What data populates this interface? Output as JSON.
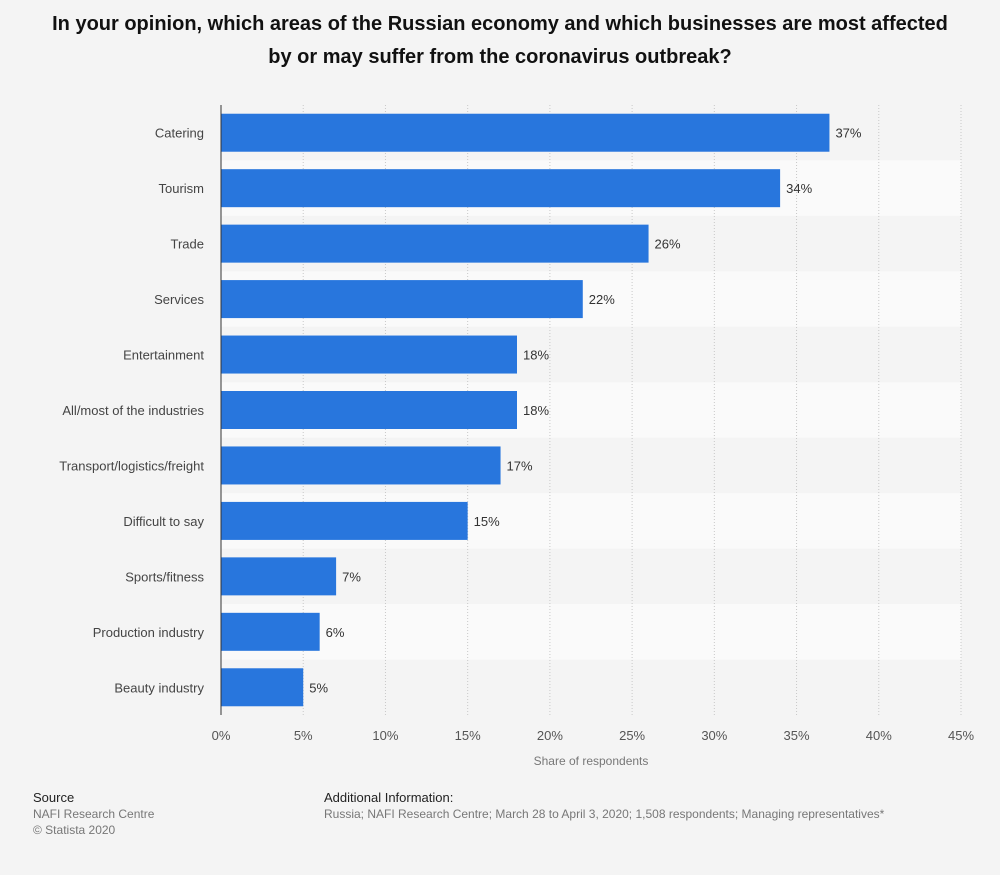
{
  "chart_data": {
    "type": "bar",
    "orientation": "horizontal",
    "title": "In your opinion, which areas of the Russian economy and which businesses are most affected by or may suffer from the coronavirus outbreak?",
    "categories": [
      "Catering",
      "Tourism",
      "Trade",
      "Services",
      "Entertainment",
      "All/most of the industries",
      "Transport/logistics/freight",
      "Difficult to say",
      "Sports/fitness",
      "Production industry",
      "Beauty industry"
    ],
    "values": [
      37,
      34,
      26,
      22,
      18,
      18,
      17,
      15,
      7,
      6,
      5
    ],
    "value_labels": [
      "37%",
      "34%",
      "26%",
      "22%",
      "18%",
      "18%",
      "17%",
      "15%",
      "7%",
      "6%",
      "5%"
    ],
    "xlabel": "Share of respondents",
    "ylabel": "",
    "xlim": [
      0,
      45
    ],
    "ticks": [
      0,
      5,
      10,
      15,
      20,
      25,
      30,
      35,
      40,
      45
    ],
    "tick_labels": [
      "0%",
      "5%",
      "10%",
      "15%",
      "20%",
      "25%",
      "30%",
      "35%",
      "40%",
      "45%"
    ],
    "grid": true,
    "bar_color": "#2876dd"
  },
  "footer": {
    "source_heading": "Source",
    "source_lines": [
      "NAFI Research Centre",
      "© Statista 2020"
    ],
    "info_heading": "Additional Information:",
    "info_text": "Russia; NAFI Research Centre; March 28 to April 3, 2020; 1,508 respondents; Managing representatives*"
  }
}
